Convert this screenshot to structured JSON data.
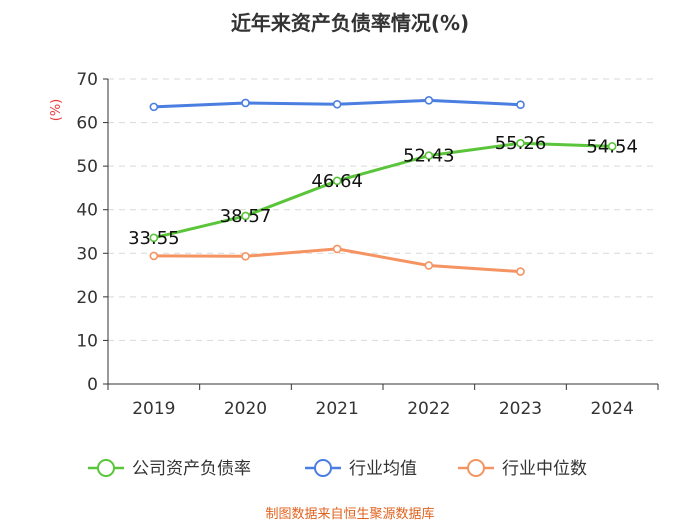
{
  "chart_data": {
    "type": "line",
    "title": "近年来资产负债率情况(%)",
    "ylabel": "(%)",
    "xlabel": "",
    "categories": [
      "2019",
      "2020",
      "2021",
      "2022",
      "2023",
      "2024"
    ],
    "ylim": [
      0,
      70
    ],
    "yticks": [
      0,
      10,
      20,
      30,
      40,
      50,
      60,
      70
    ],
    "grid": true,
    "legend_position": "bottom-center",
    "series": [
      {
        "name": "公司资产负债率",
        "color": "#5ac53a",
        "values": [
          33.55,
          38.57,
          46.64,
          52.43,
          55.26,
          54.54
        ],
        "labels": [
          "33.55",
          "38.57",
          "46.64",
          "52.43",
          "55.26",
          "54.54"
        ]
      },
      {
        "name": "行业均值",
        "color": "#4a7ee0",
        "values": [
          63.6,
          64.5,
          64.2,
          65.1,
          64.1,
          null
        ]
      },
      {
        "name": "行业中位数",
        "color": "#f59462",
        "values": [
          29.4,
          29.3,
          31.0,
          27.2,
          25.8,
          null
        ]
      }
    ],
    "ylabel_color": "#e83a3a"
  },
  "source": {
    "text": "制图数据来自恒生聚源数据库",
    "color": "#e0621e"
  }
}
